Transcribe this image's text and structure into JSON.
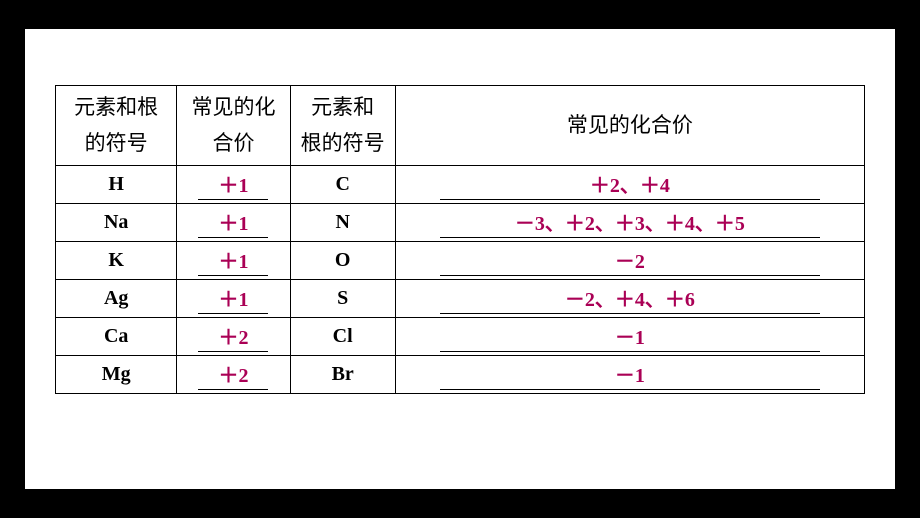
{
  "headers": {
    "col1": "元素和根的符号",
    "col2": "常见的化合价",
    "col3": "元素和根的符号",
    "col4": "常见的化合价"
  },
  "rows": [
    {
      "sym1": "H",
      "val1": "＋1",
      "sym2": "C",
      "val2": "＋2、＋4"
    },
    {
      "sym1": "Na",
      "val1": "＋1",
      "sym2": "N",
      "val2": "－3、＋2、＋3、＋4、＋5"
    },
    {
      "sym1": "K",
      "val1": "＋1",
      "sym2": "O",
      "val2": "－2"
    },
    {
      "sym1": "Ag",
      "val1": "＋1",
      "sym2": "S",
      "val2": "－2、＋4、＋6"
    },
    {
      "sym1": "Ca",
      "val1": "＋2",
      "sym2": "Cl",
      "val2": "－1"
    },
    {
      "sym1": "Mg",
      "val1": "＋2",
      "sym2": "Br",
      "val2": "－1"
    }
  ],
  "styling": {
    "page_bg": "#ffffff",
    "outer_bg": "#000000",
    "border_color": "#000000",
    "valence_color": "#aa0055",
    "symbol_font": "Times New Roman",
    "header_font": "SimSun",
    "font_size_body": 20,
    "font_size_header": 21,
    "col_widths_pct": [
      15,
      14,
      13,
      58
    ]
  }
}
